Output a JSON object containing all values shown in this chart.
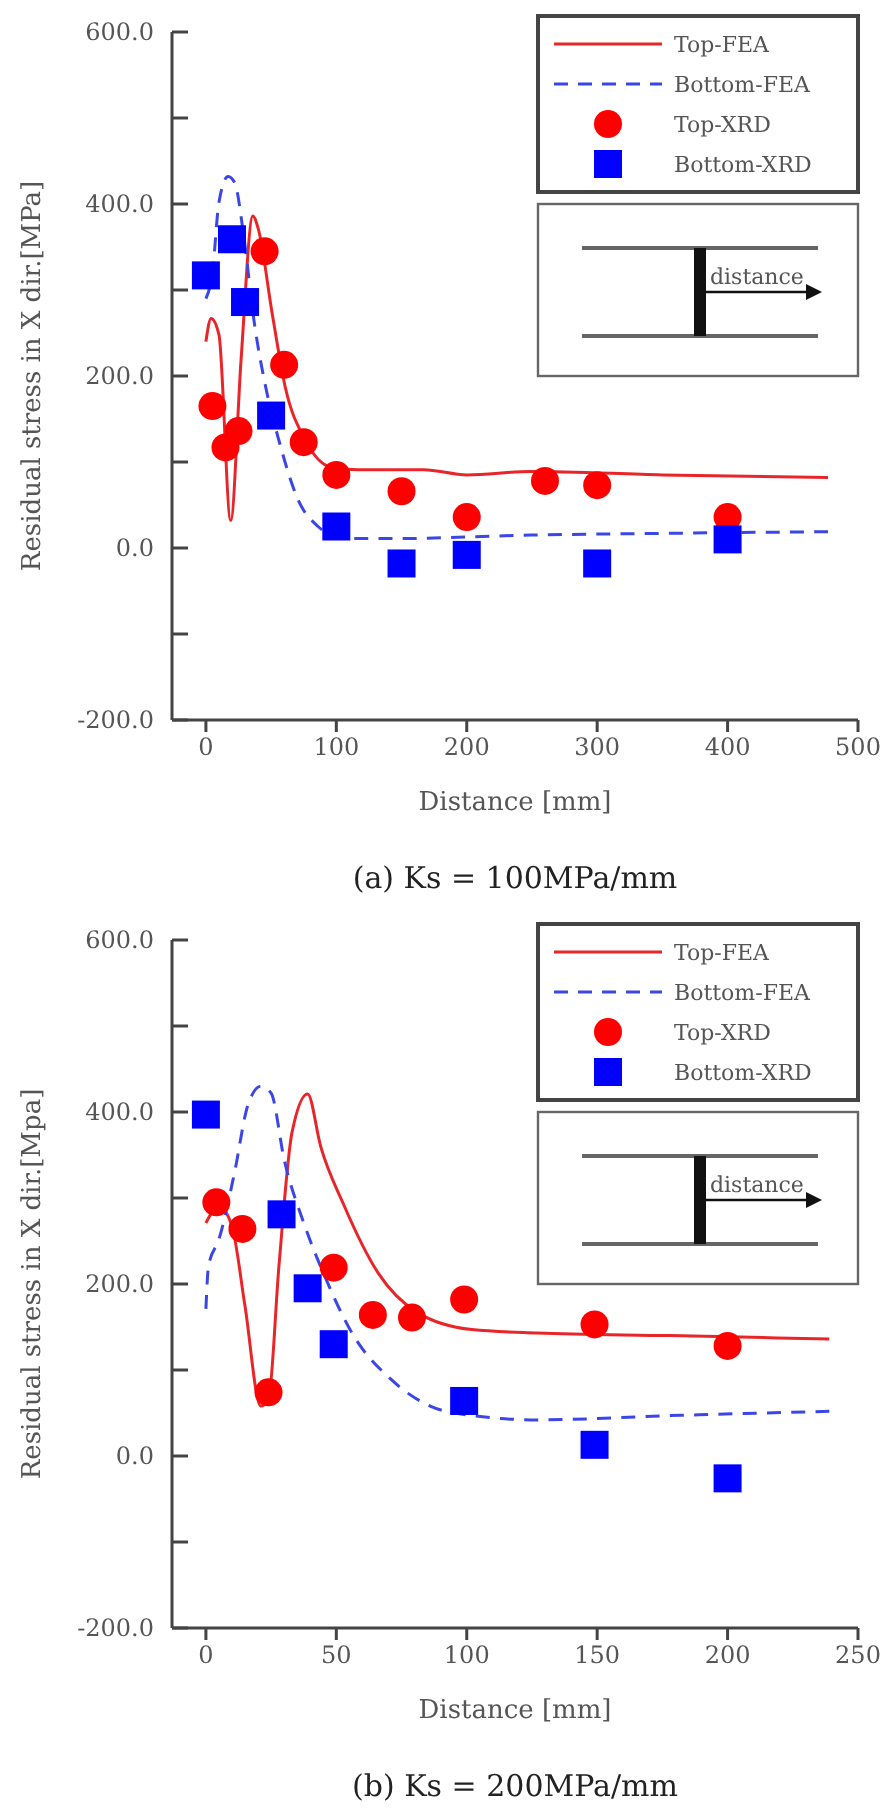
{
  "chart_data": [
    {
      "type": "line",
      "title": "(a) Ks = 100MPa/mm",
      "xlabel": "Distance [mm]",
      "ylabel": "Residual stress in X dir.[MPa]",
      "xlim": [
        -26,
        500
      ],
      "xticks": [
        0,
        100,
        200,
        300,
        400,
        500
      ],
      "ylim": [
        -200,
        600
      ],
      "yticks": [
        {
          "value": -200,
          "label": "-200.0"
        },
        {
          "value": -100,
          "label": null
        },
        {
          "value": 0,
          "label": "0.0"
        },
        {
          "value": 100,
          "label": null
        },
        {
          "value": 200,
          "label": "200.0"
        },
        {
          "value": 300,
          "label": null
        },
        {
          "value": 400,
          "label": "400.0"
        },
        {
          "value": 500,
          "label": null
        },
        {
          "value": 600,
          "label": "600.0"
        }
      ],
      "legend": "top right",
      "annotations": [
        "distance"
      ],
      "series": [
        {
          "name": "Top-FEA",
          "line_style": "solid",
          "color": "#e8262a",
          "x": [
            0,
            4,
            10,
            19,
            27,
            36,
            40,
            51,
            61,
            76,
            96,
            117,
            167,
            200,
            249,
            350,
            477
          ],
          "values": [
            240,
            267,
            248,
            32,
            220,
            386,
            372,
            271,
            186,
            126,
            94,
            91,
            91,
            85,
            89,
            85,
            82
          ]
        },
        {
          "name": "Bottom-FEA",
          "line_style": "dashed",
          "color": "#3a46e6",
          "x": [
            0,
            5,
            10,
            17,
            22,
            29,
            37,
            46,
            56,
            71,
            86,
            106,
            146,
            249,
            350,
            477
          ],
          "values": [
            290,
            320,
            402,
            432,
            425,
            363,
            263,
            186,
            125,
            55,
            25,
            11,
            11,
            15,
            17,
            19
          ]
        },
        {
          "name": "Top-XRD",
          "type": "scatter",
          "marker": "circle",
          "color": "#ff0000",
          "x": [
            5,
            15,
            25,
            45,
            60,
            75,
            100,
            150,
            200,
            260,
            300,
            400
          ],
          "values": [
            165,
            117,
            136,
            345,
            213,
            123,
            85,
            66,
            36,
            78,
            73,
            36
          ]
        },
        {
          "name": "Bottom-XRD",
          "type": "scatter",
          "marker": "square",
          "color": "#0000ff",
          "x": [
            0,
            20,
            30,
            50,
            100,
            150,
            200,
            300,
            400
          ],
          "values": [
            317,
            359,
            286,
            154,
            25,
            -18,
            -8,
            -18,
            10
          ]
        }
      ]
    },
    {
      "type": "line",
      "title": "(b) Ks = 200MPa/mm",
      "xlabel": "Distance [mm]",
      "ylabel": "Residual stress in X dir.[Mpa]",
      "xlim": [
        -13,
        250
      ],
      "xticks": [
        0,
        50,
        100,
        150,
        200,
        250
      ],
      "ylim": [
        -200,
        600
      ],
      "yticks": [
        {
          "value": -200,
          "label": "-200.0"
        },
        {
          "value": -100,
          "label": null
        },
        {
          "value": 0,
          "label": "0.0"
        },
        {
          "value": 100,
          "label": null
        },
        {
          "value": 200,
          "label": "200.0"
        },
        {
          "value": 300,
          "label": null
        },
        {
          "value": 400,
          "label": "400.0"
        },
        {
          "value": 500,
          "label": null
        },
        {
          "value": 600,
          "label": "600.0"
        }
      ],
      "legend": "top right",
      "annotations": [
        "distance"
      ],
      "series": [
        {
          "name": "Top-FEA",
          "line_style": "solid",
          "color": "#e8262a",
          "x": [
            0,
            5,
            10,
            15,
            21,
            24,
            28,
            33,
            39,
            44,
            53,
            66,
            81,
            102,
            127,
            178,
            239
          ],
          "values": [
            271,
            290,
            267,
            174,
            58,
            66,
            221,
            376,
            421,
            360,
            291,
            213,
            167,
            147,
            143,
            140,
            136
          ]
        },
        {
          "name": "Bottom-FEA",
          "line_style": "dashed",
          "color": "#3a46e6",
          "x": [
            0,
            1,
            5,
            11,
            16,
            21,
            25,
            30,
            38,
            46,
            56,
            71,
            86,
            102,
            127,
            178,
            239
          ],
          "values": [
            171,
            221,
            252,
            330,
            407,
            430,
            422,
            345,
            267,
            206,
            143,
            89,
            58,
            47,
            42,
            47,
            52
          ]
        },
        {
          "name": "Top-XRD",
          "type": "scatter",
          "marker": "circle",
          "color": "#ff0000",
          "x": [
            4,
            14,
            24,
            49,
            64,
            79,
            99,
            149,
            200
          ],
          "values": [
            295,
            264,
            74,
            219,
            164,
            161,
            182,
            153,
            128
          ]
        },
        {
          "name": "Bottom-XRD",
          "type": "scatter",
          "marker": "square",
          "color": "#0000ff",
          "x": [
            0,
            29,
            39,
            49,
            99,
            149,
            200
          ],
          "values": [
            397,
            281,
            195,
            130,
            64,
            13,
            -26
          ]
        }
      ]
    }
  ]
}
